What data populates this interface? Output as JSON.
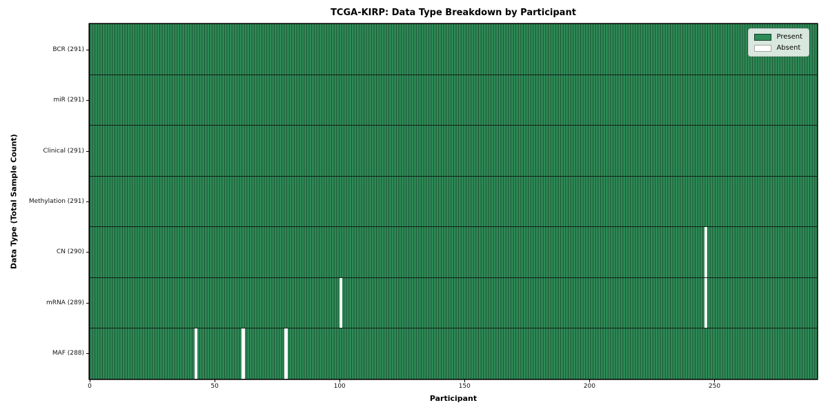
{
  "title": "TCGA-KIRP: Data Type Breakdown by Participant",
  "axes": {
    "x_label": "Participant",
    "y_label": "Data Type (Total Sample Count)"
  },
  "legend": {
    "items": [
      {
        "label": "Present",
        "color": "#2e8b57"
      },
      {
        "label": "Absent",
        "color": "#ffffff"
      }
    ],
    "position": "upper-right"
  },
  "colors": {
    "present": "#2e8b57",
    "absent": "#ffffff",
    "cell_edge": "#1b4c30",
    "row_separator": "#0a0a0a",
    "axes_frame": "#000000",
    "legend_background": "#eef2ee"
  },
  "chart_data": {
    "type": "heatmap",
    "title": "TCGA-KIRP: Data Type Breakdown by Participant",
    "xlabel": "Participant",
    "ylabel": "Data Type (Total Sample Count)",
    "n_participants": 291,
    "xlim": [
      0,
      291
    ],
    "x_ticks": [
      0,
      50,
      100,
      150,
      200,
      250
    ],
    "grid": false,
    "legend_entries": [
      "Present",
      "Absent"
    ],
    "value_encoding": {
      "present": 1,
      "absent": 0
    },
    "rows": [
      {
        "name": "BCR",
        "label": "BCR (291)",
        "total_samples": 291,
        "absent_participants": []
      },
      {
        "name": "miR",
        "label": "miR (291)",
        "total_samples": 291,
        "absent_participants": []
      },
      {
        "name": "Clinical",
        "label": "Clinical (291)",
        "total_samples": 291,
        "absent_participants": []
      },
      {
        "name": "Methylation",
        "label": "Methylation (291)",
        "total_samples": 291,
        "absent_participants": []
      },
      {
        "name": "CN",
        "label": "CN (290)",
        "total_samples": 290,
        "absent_participants": [
          246
        ]
      },
      {
        "name": "mRNA",
        "label": "mRNA (289)",
        "total_samples": 289,
        "absent_participants": [
          100,
          246
        ]
      },
      {
        "name": "MAF",
        "label": "MAF (288)",
        "total_samples": 288,
        "absent_participants": [
          42,
          61,
          78
        ]
      }
    ]
  }
}
